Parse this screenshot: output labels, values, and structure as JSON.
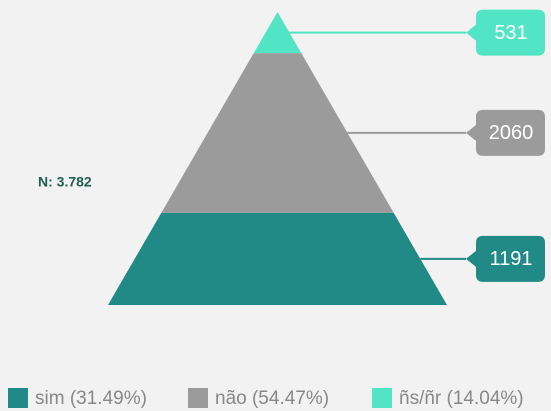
{
  "chart_data": {
    "type": "pyramid",
    "annotation": "N: 3.782",
    "series": [
      {
        "name": "sim (31.49%)",
        "color": "#218a86",
        "values": [
          1191
        ]
      },
      {
        "name": "não (54.47%)",
        "color": "#9b9b9b",
        "values": [
          2060
        ]
      },
      {
        "name": "ñs/ñr (14.04%)",
        "color": "#52e5c5",
        "values": [
          531
        ]
      }
    ],
    "legend": "bottom"
  }
}
